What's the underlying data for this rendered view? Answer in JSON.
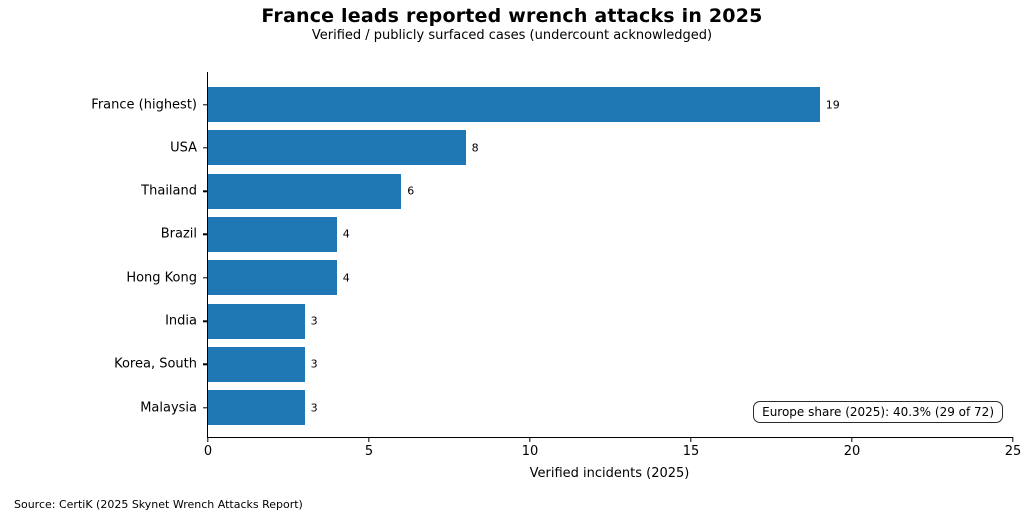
{
  "title": "France leads reported wrench attacks in 2025",
  "subtitle": "Verified / publicly surfaced cases (undercount acknowledged)",
  "annotation": "Europe share (2025): 40.3% (29 of 72)",
  "source": "Source: CertiK (2025 Skynet Wrench Attacks Report)",
  "chart_data": {
    "type": "bar",
    "orientation": "horizontal",
    "categories": [
      "France (highest)",
      "USA",
      "Thailand",
      "Brazil",
      "Hong Kong",
      "India",
      "Korea, South",
      "Malaysia"
    ],
    "values": [
      19,
      8,
      6,
      4,
      4,
      3,
      3,
      3
    ],
    "title": "France leads reported wrench attacks in 2025",
    "subtitle": "Verified / publicly surfaced cases (undercount acknowledged)",
    "xlabel": "Verified incidents (2025)",
    "ylabel": "",
    "xlim": [
      0,
      25
    ],
    "xticks": [
      0,
      5,
      10,
      15,
      20,
      25
    ],
    "bar_color": "#1f77b4",
    "grid": false,
    "legend": "none",
    "annotation": "Europe share (2025): 40.3% (29 of 72)"
  }
}
